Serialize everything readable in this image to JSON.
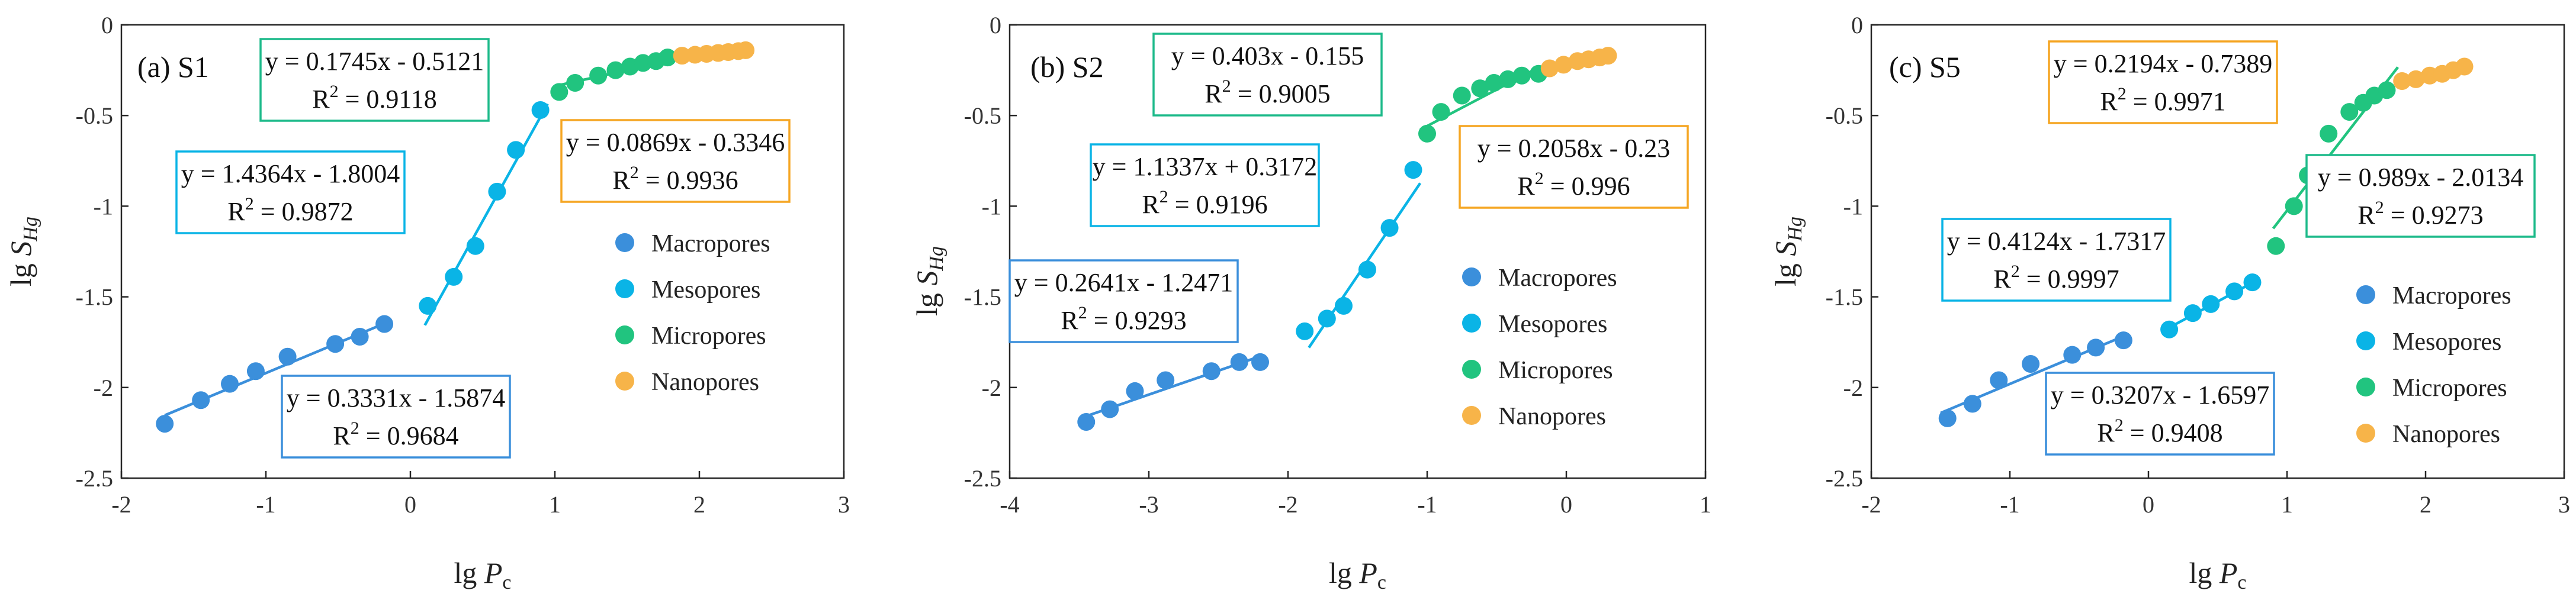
{
  "figure": {
    "colors": {
      "macropores": "#3b8fdb",
      "mesopores": "#0ab4e6",
      "micropores": "#21c47f",
      "nanopores": "#f7b449",
      "box_macro": "#3b8fdb",
      "box_meso": "#0ab4e6",
      "box_micro": "#1dba8a",
      "box_nano": "#f5a623"
    }
  },
  "chart_data": [
    {
      "type": "scatter",
      "panel_label": "(a) S1",
      "xlabel_main": "lg ",
      "xlabel_var": "P",
      "xlabel_sub": "c",
      "ylabel_main": "lg ",
      "ylabel_var": "S",
      "ylabel_sub": "Hg",
      "xlim": [
        -2,
        3
      ],
      "ylim": [
        -2.5,
        0
      ],
      "xticks": [
        -2,
        -1,
        0,
        1,
        2,
        3
      ],
      "xtick_labels": [
        "-2",
        "-1",
        "0",
        "1",
        "2",
        "3"
      ],
      "yticks": [
        0,
        -0.5,
        -1,
        -1.5,
        -2,
        -2.5
      ],
      "ytick_labels": [
        "0",
        "-0.5",
        "-1",
        "-1.5",
        "-2",
        "-2.5"
      ],
      "legend": [
        "Macropores",
        "Mesopores",
        "Micropores",
        "Nanopores"
      ],
      "series": [
        {
          "name": "Macropores",
          "x": [
            -1.7,
            -1.45,
            -1.25,
            -1.07,
            -0.85,
            -0.52,
            -0.35,
            -0.18
          ],
          "y": [
            -2.2,
            -2.07,
            -1.98,
            -1.91,
            -1.83,
            -1.76,
            -1.72,
            -1.65
          ]
        },
        {
          "name": "Mesopores",
          "x": [
            0.12,
            0.3,
            0.45,
            0.6,
            0.73,
            0.9
          ],
          "y": [
            -1.55,
            -1.39,
            -1.22,
            -0.92,
            -0.69,
            -0.47
          ]
        },
        {
          "name": "Micropores",
          "x": [
            1.03,
            1.14,
            1.3,
            1.42,
            1.52,
            1.61,
            1.7,
            1.78
          ],
          "y": [
            -0.37,
            -0.32,
            -0.28,
            -0.25,
            -0.23,
            -0.21,
            -0.2,
            -0.18
          ]
        },
        {
          "name": "Nanopores",
          "x": [
            1.88,
            1.97,
            2.05,
            2.13,
            2.2,
            2.27,
            2.32
          ],
          "y": [
            -0.17,
            -0.165,
            -0.16,
            -0.155,
            -0.15,
            -0.145,
            -0.14
          ]
        }
      ],
      "fits": [
        {
          "series": "Macropores",
          "equation": "y = 0.3331x - 1.5874",
          "r2_value": " = 0.9684",
          "slope": 0.3331,
          "intercept": -1.5874,
          "x_range": [
            -1.7,
            -0.18
          ]
        },
        {
          "series": "Mesopores",
          "equation": "y = 1.4364x - 1.8004",
          "r2_value": " = 0.9872",
          "slope": 1.4364,
          "intercept": -1.8004,
          "x_range": [
            0.1,
            0.95
          ]
        },
        {
          "series": "Micropores",
          "equation": "y = 0.1745x - 0.5121",
          "r2_value": " = 0.9118",
          "slope": 0.1745,
          "intercept": -0.5121,
          "x_range": [
            1.0,
            1.85
          ]
        },
        {
          "series": "Nanopores",
          "equation": "y = 0.0869x - 0.3346",
          "r2_value": " = 0.9936",
          "slope": 0.0869,
          "intercept": -0.3346,
          "x_range": [
            1.85,
            2.35
          ]
        }
      ]
    },
    {
      "type": "scatter",
      "panel_label": "(b) S2",
      "xlabel_main": "lg ",
      "xlabel_var": "P",
      "xlabel_sub": "c",
      "ylabel_main": "lg ",
      "ylabel_var": "S",
      "ylabel_sub": "Hg",
      "xlim": [
        -4,
        1
      ],
      "ylim": [
        -2.5,
        0
      ],
      "xticks": [
        -4,
        -3,
        -2,
        -1,
        0,
        1
      ],
      "xtick_labels": [
        "-4",
        "-3",
        "-2",
        "-1",
        "0",
        "1"
      ],
      "yticks": [
        0,
        -0.5,
        -1,
        -1.5,
        -2,
        -2.5
      ],
      "ytick_labels": [
        "0",
        "-0.5",
        "-1",
        "-1.5",
        "-2",
        "-2.5"
      ],
      "legend": [
        "Macropores",
        "Mesopores",
        "Micropores",
        "Nanopores"
      ],
      "series": [
        {
          "name": "Macropores",
          "x": [
            -3.45,
            -3.28,
            -3.1,
            -2.88,
            -2.55,
            -2.35,
            -2.2
          ],
          "y": [
            -2.19,
            -2.12,
            -2.02,
            -1.96,
            -1.91,
            -1.86,
            -1.86
          ]
        },
        {
          "name": "Mesopores",
          "x": [
            -1.88,
            -1.72,
            -1.6,
            -1.43,
            -1.27,
            -1.1
          ],
          "y": [
            -1.69,
            -1.62,
            -1.55,
            -1.35,
            -1.12,
            -0.8
          ]
        },
        {
          "name": "Micropores",
          "x": [
            -1.0,
            -0.9,
            -0.75,
            -0.62,
            -0.52,
            -0.42,
            -0.32,
            -0.2
          ],
          "y": [
            -0.6,
            -0.48,
            -0.39,
            -0.35,
            -0.32,
            -0.3,
            -0.28,
            -0.27
          ]
        },
        {
          "name": "Nanopores",
          "x": [
            -0.12,
            -0.02,
            0.08,
            0.16,
            0.24,
            0.3
          ],
          "y": [
            -0.24,
            -0.22,
            -0.2,
            -0.19,
            -0.18,
            -0.17
          ]
        }
      ],
      "fits": [
        {
          "series": "Macropores",
          "equation": "y = 0.2641x - 1.2471",
          "r2_value": " = 0.9293",
          "slope": 0.2641,
          "intercept": -1.2471,
          "x_range": [
            -3.45,
            -2.2
          ]
        },
        {
          "series": "Mesopores",
          "equation": "y = 1.1337x + 0.3172",
          "r2_value": " = 0.9196",
          "slope": 1.1337,
          "intercept": 0.3172,
          "x_range": [
            -1.85,
            -1.05
          ]
        },
        {
          "series": "Micropores",
          "equation": "y = 0.403x - 0.155",
          "r2_value": " = 0.9005",
          "slope": 0.403,
          "intercept": -0.155,
          "x_range": [
            -1.05,
            -0.2
          ]
        },
        {
          "series": "Nanopores",
          "equation": "y = 0.2058x - 0.23",
          "r2_value": " = 0.996",
          "slope": 0.2058,
          "intercept": -0.23,
          "x_range": [
            -0.15,
            0.32
          ]
        }
      ]
    },
    {
      "type": "scatter",
      "panel_label": "(c) S5",
      "xlabel_main": "lg ",
      "xlabel_var": "P",
      "xlabel_sub": "c",
      "ylabel_main": "lg ",
      "ylabel_var": "S",
      "ylabel_sub": "Hg",
      "xlim": [
        -2,
        3
      ],
      "ylim": [
        -2.5,
        0
      ],
      "xticks": [
        -2,
        -1,
        0,
        1,
        2,
        3
      ],
      "xtick_labels": [
        "-2",
        "-1",
        "0",
        "1",
        "2",
        "3"
      ],
      "yticks": [
        0,
        -0.5,
        -1,
        -1.5,
        -2,
        -2.5
      ],
      "ytick_labels": [
        "0",
        "-0.5",
        "-1",
        "-1.5",
        "-2",
        "-2.5"
      ],
      "legend": [
        "Macropores",
        "Mesopores",
        "Micropores",
        "Nanopores"
      ],
      "series": [
        {
          "name": "Macropores",
          "x": [
            -1.45,
            -1.27,
            -1.08,
            -0.85,
            -0.55,
            -0.38,
            -0.18
          ],
          "y": [
            -2.17,
            -2.09,
            -1.96,
            -1.87,
            -1.82,
            -1.78,
            -1.74
          ]
        },
        {
          "name": "Mesopores",
          "x": [
            0.15,
            0.32,
            0.45,
            0.62,
            0.75
          ],
          "y": [
            -1.68,
            -1.59,
            -1.54,
            -1.47,
            -1.42
          ]
        },
        {
          "name": "Micropores",
          "x": [
            0.92,
            1.05,
            1.15,
            1.3,
            1.45,
            1.55,
            1.63,
            1.72
          ],
          "y": [
            -1.22,
            -1.0,
            -0.83,
            -0.6,
            -0.48,
            -0.43,
            -0.39,
            -0.36
          ]
        },
        {
          "name": "Nanopores",
          "x": [
            1.83,
            1.93,
            2.03,
            2.12,
            2.2,
            2.28
          ],
          "y": [
            -0.31,
            -0.3,
            -0.28,
            -0.27,
            -0.25,
            -0.23
          ]
        }
      ],
      "fits": [
        {
          "series": "Macropores",
          "equation": "y = 0.3207x - 1.6597",
          "r2_value": " = 0.9408",
          "slope": 0.3207,
          "intercept": -1.6597,
          "x_range": [
            -1.5,
            -0.15
          ]
        },
        {
          "series": "Mesopores",
          "equation": "y = 0.4124x - 1.7317",
          "r2_value": " = 0.9997",
          "slope": 0.4124,
          "intercept": -1.7317,
          "x_range": [
            0.12,
            0.78
          ]
        },
        {
          "series": "Micropores",
          "equation": "y = 0.989x - 2.0134",
          "r2_value": " = 0.9273",
          "slope": 0.989,
          "intercept": -2.0134,
          "x_range": [
            0.9,
            1.8
          ]
        },
        {
          "series": "Nanopores",
          "equation": "y = 0.2194x - 0.7389",
          "r2_value": " = 0.9971",
          "slope": 0.2194,
          "intercept": -0.7389,
          "x_range": [
            1.8,
            2.3
          ]
        }
      ]
    }
  ]
}
